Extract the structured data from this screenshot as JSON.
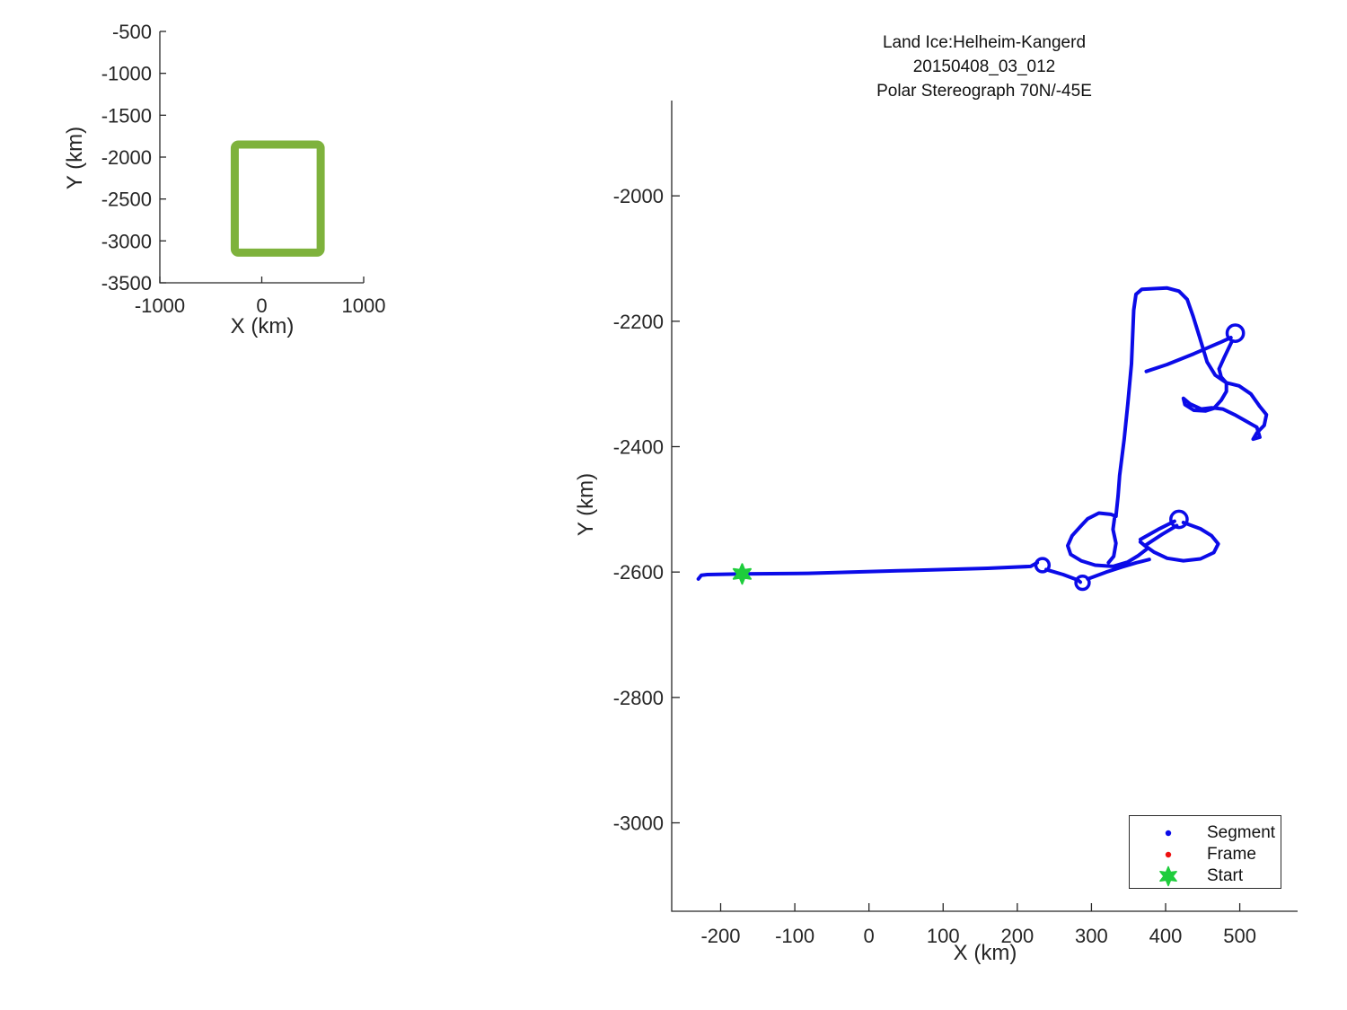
{
  "chart_data": [
    {
      "id": "main",
      "type": "line",
      "title": "Land Ice:Helheim-Kangerd",
      "subtitle": "20150408_03_012",
      "subtitle2": "Polar Stereograph 70N/-45E",
      "xlabel": "X (km)",
      "ylabel": "Y (km)",
      "xlim": [
        -266,
        578
      ],
      "ylim": [
        -3141,
        -1848
      ],
      "grid": false,
      "xtick_values": [
        -200,
        -100,
        0,
        100,
        200,
        300,
        400,
        500
      ],
      "xtick_labels": [
        "-200",
        "-100",
        "0",
        "100",
        "200",
        "300",
        "400",
        "500"
      ],
      "ytick_values": [
        -2000,
        -2200,
        -2400,
        -2600,
        -2800,
        -3000
      ],
      "ytick_labels": [
        "-2000",
        "-2200",
        "-2400",
        "-2600",
        "-2800",
        "-3000"
      ],
      "legend_position": "lower right",
      "legend": [
        {
          "label": "Segment",
          "marker": "dot",
          "color": "#0b0be8"
        },
        {
          "label": "Frame",
          "marker": "dot",
          "color": "#ee1111"
        },
        {
          "label": "Start",
          "marker": "hexagram",
          "color": "#1ecd3c"
        }
      ],
      "series": [
        {
          "name": "Segment",
          "style": "track-polylines",
          "color": "#0b0be8",
          "polylines": [
            [
              [
                -230,
                -2611
              ],
              [
                -226,
                -2605
              ],
              [
                -218,
                -2604
              ],
              [
                -171,
                -2603
              ],
              [
                -82,
                -2602
              ],
              [
                39,
                -2598
              ],
              [
                160,
                -2594
              ],
              [
                218,
                -2591
              ],
              [
                227,
                -2585
              ]
            ],
            [
              [
                239,
                -2596
              ],
              [
                262,
                -2604
              ],
              [
                282,
                -2613
              ],
              [
                285,
                -2616
              ]
            ],
            [
              [
                295,
                -2611
              ],
              [
                320,
                -2600
              ],
              [
                341,
                -2592
              ],
              [
                361,
                -2585
              ],
              [
                378,
                -2580
              ]
            ],
            [
              [
                333,
                -2511
              ],
              [
                326,
                -2508
              ],
              [
                310,
                -2506
              ],
              [
                295,
                -2515
              ],
              [
                287,
                -2525
              ],
              [
                274,
                -2542
              ],
              [
                268,
                -2558
              ],
              [
                272,
                -2572
              ],
              [
                286,
                -2582
              ],
              [
                305,
                -2589
              ],
              [
                329,
                -2591
              ],
              [
                349,
                -2584
              ],
              [
                363,
                -2574
              ],
              [
                374,
                -2564
              ]
            ],
            [
              [
                331,
                -2515
              ],
              [
                329,
                -2532
              ],
              [
                333,
                -2554
              ],
              [
                330,
                -2575
              ],
              [
                323,
                -2585
              ]
            ],
            [
              [
                366,
                -2548
              ],
              [
                390,
                -2532
              ],
              [
                412,
                -2519
              ]
            ],
            [
              [
                372,
                -2558
              ],
              [
                395,
                -2540
              ],
              [
                415,
                -2526
              ]
            ],
            [
              [
                424,
                -2521
              ],
              [
                447,
                -2531
              ],
              [
                462,
                -2542
              ],
              [
                471,
                -2555
              ],
              [
                465,
                -2569
              ],
              [
                447,
                -2579
              ],
              [
                424,
                -2582
              ],
              [
                402,
                -2578
              ],
              [
                384,
                -2568
              ],
              [
                372,
                -2558
              ],
              [
                366,
                -2552
              ]
            ],
            [
              [
                333,
                -2511
              ],
              [
                336,
                -2478
              ],
              [
                338,
                -2446
              ],
              [
                344,
                -2389
              ],
              [
                349,
                -2332
              ],
              [
                354,
                -2268
              ],
              [
                357,
                -2182
              ],
              [
                360,
                -2157
              ],
              [
                368,
                -2149
              ],
              [
                402,
                -2147
              ],
              [
                418,
                -2152
              ],
              [
                429,
                -2165
              ],
              [
                437,
                -2192
              ],
              [
                446,
                -2226
              ],
              [
                456,
                -2265
              ],
              [
                467,
                -2286
              ],
              [
                482,
                -2298
              ],
              [
                499,
                -2303
              ],
              [
                515,
                -2316
              ],
              [
                527,
                -2336
              ],
              [
                536,
                -2349
              ],
              [
                533,
                -2366
              ],
              [
                523,
                -2378
              ],
              [
                518,
                -2388
              ],
              [
                527,
                -2385
              ],
              [
                523,
                -2369
              ],
              [
                508,
                -2359
              ],
              [
                493,
                -2349
              ],
              [
                477,
                -2340
              ],
              [
                462,
                -2338
              ],
              [
                448,
                -2340
              ],
              [
                433,
                -2332
              ],
              [
                424,
                -2323
              ],
              [
                426,
                -2333
              ],
              [
                438,
                -2342
              ],
              [
                454,
                -2343
              ],
              [
                465,
                -2339
              ],
              [
                475,
                -2326
              ],
              [
                482,
                -2312
              ],
              [
                482,
                -2300
              ]
            ],
            [
              [
                374,
                -2280
              ],
              [
                402,
                -2269
              ],
              [
                438,
                -2252
              ],
              [
                475,
                -2233
              ],
              [
                488,
                -2226
              ]
            ],
            [
              [
                489,
                -2233
              ],
              [
                479,
                -2258
              ],
              [
                472,
                -2276
              ],
              [
                475,
                -2289
              ],
              [
                481,
                -2297
              ]
            ]
          ],
          "loop_end_circles": [
            {
              "x": 234,
              "y": -2589,
              "r": 9
            },
            {
              "x": 288,
              "y": -2617,
              "r": 9
            },
            {
              "x": 418,
              "y": -2516,
              "r": 11
            },
            {
              "x": 494,
              "y": -2219,
              "r": 11
            }
          ]
        },
        {
          "name": "Frame",
          "style": "dots",
          "color": "#ee1111",
          "points": []
        },
        {
          "name": "Start",
          "style": "hexagram-marker",
          "color": "#1ecd3c",
          "x": -171,
          "y": -2603
        }
      ]
    },
    {
      "id": "overview",
      "type": "line",
      "title": "",
      "xlabel": "X (km)",
      "ylabel": "Y (km)",
      "xlim": [
        -1000,
        1000
      ],
      "ylim": [
        -3500,
        -500
      ],
      "grid": false,
      "xtick_values": [
        -1000,
        0,
        1000
      ],
      "xtick_labels": [
        "-1000",
        "0",
        "1000"
      ],
      "ytick_values": [
        -500,
        -1000,
        -1500,
        -2000,
        -2500,
        -3000,
        -3500
      ],
      "ytick_labels": [
        "-500",
        "-1000",
        "-1500",
        "-2000",
        "-2500",
        "-3000",
        "-3500"
      ],
      "series": [
        {
          "name": "coverage-extent-box",
          "style": "rect-outline",
          "color": "#7eb23c",
          "x": [
            -265,
            578
          ],
          "y": [
            -3140,
            -1850
          ]
        }
      ]
    }
  ]
}
